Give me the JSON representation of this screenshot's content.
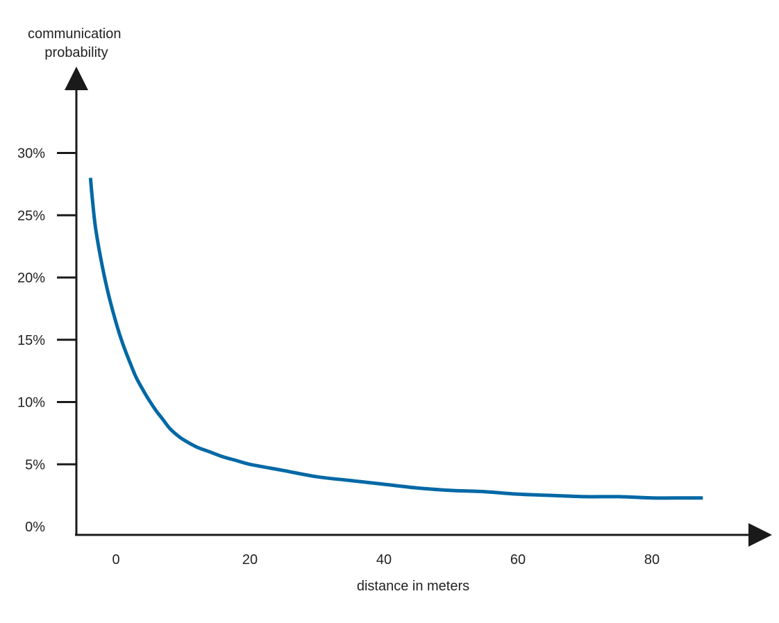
{
  "chart_data": {
    "type": "line",
    "title": "",
    "ylabel": [
      "communication",
      "probability"
    ],
    "xlabel": "distance in meters",
    "xlim": [
      -6,
      95
    ],
    "ylim": [
      0,
      0.35
    ],
    "x_ticks": [
      0,
      20,
      40,
      60,
      80
    ],
    "x_tick_labels": [
      "0",
      "20",
      "40",
      "60",
      "80"
    ],
    "y_ticks": [
      0,
      0.05,
      0.1,
      0.15,
      0.2,
      0.25,
      0.3
    ],
    "y_tick_labels": [
      "0%",
      "5%",
      "10%",
      "15%",
      "20%",
      "25%",
      "30%"
    ],
    "grid": false,
    "colors": {
      "series": "#0068a5",
      "axis": "#1a1a1a"
    },
    "series": [
      {
        "color": "#0068a5",
        "x": [
          -3.8,
          -3.5,
          -3,
          -2,
          -1,
          0,
          1,
          2,
          3,
          4,
          5,
          6,
          7,
          8,
          9,
          10,
          12,
          14,
          16,
          18,
          20,
          25,
          30,
          35,
          40,
          45,
          50,
          55,
          60,
          65,
          70,
          75,
          80,
          85,
          87.6
        ],
        "y": [
          0.28,
          0.262,
          0.238,
          0.208,
          0.184,
          0.164,
          0.147,
          0.133,
          0.12,
          0.11,
          0.101,
          0.093,
          0.086,
          0.079,
          0.074,
          0.07,
          0.064,
          0.06,
          0.056,
          0.053,
          0.05,
          0.045,
          0.04,
          0.037,
          0.034,
          0.031,
          0.029,
          0.028,
          0.026,
          0.025,
          0.024,
          0.024,
          0.023,
          0.023,
          0.023
        ]
      }
    ]
  }
}
